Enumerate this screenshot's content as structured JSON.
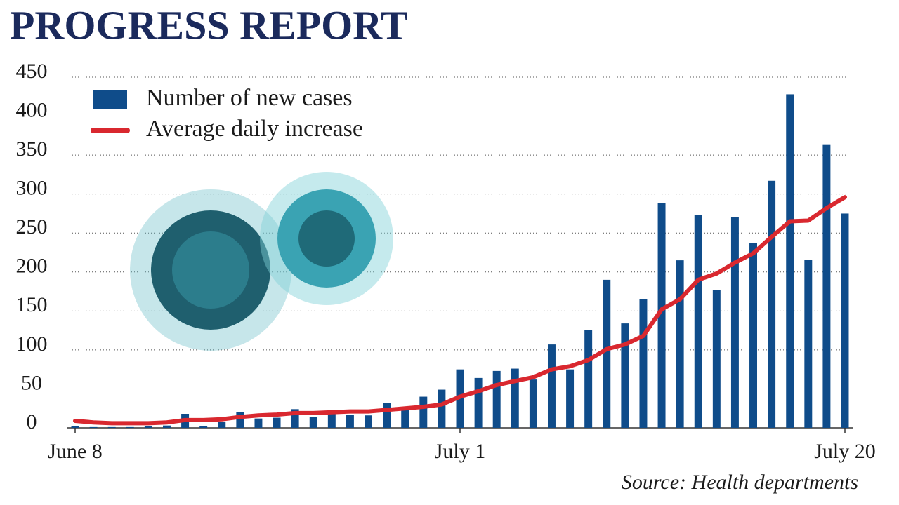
{
  "chart_data": {
    "type": "bar",
    "title": "PROGRESS REPORT",
    "source": "Source: Health departments",
    "categories": [
      "June 8",
      null,
      null,
      null,
      null,
      null,
      null,
      null,
      null,
      null,
      null,
      null,
      null,
      null,
      null,
      null,
      null,
      null,
      null,
      null,
      null,
      "July 1",
      null,
      null,
      null,
      null,
      null,
      null,
      null,
      null,
      null,
      null,
      null,
      null,
      null,
      null,
      null,
      null,
      null,
      null,
      null,
      null,
      "July 20"
    ],
    "series": [
      {
        "name": "Number of new cases",
        "color": "#0f4c8a",
        "type": "bar",
        "values": [
          2,
          1,
          1,
          1,
          2,
          3,
          18,
          2,
          8,
          20,
          12,
          13,
          24,
          14,
          20,
          17,
          16,
          32,
          24,
          40,
          49,
          75,
          64,
          73,
          76,
          62,
          107,
          75,
          126,
          190,
          134,
          165,
          288,
          215,
          273,
          177,
          270,
          237,
          317,
          428,
          216,
          363,
          275
        ]
      },
      {
        "name": "Average daily increase",
        "color": "#d9282f",
        "type": "line",
        "values": [
          9,
          7,
          6,
          6,
          6,
          7,
          10,
          10,
          11,
          14,
          16,
          17,
          19,
          19,
          20,
          21,
          21,
          23,
          25,
          27,
          30,
          40,
          47,
          55,
          60,
          65,
          75,
          79,
          87,
          101,
          107,
          118,
          152,
          165,
          190,
          198,
          212,
          224,
          245,
          265,
          266,
          282,
          296
        ]
      }
    ],
    "ylim": [
      0,
      450
    ],
    "yticks": [
      0,
      50,
      100,
      150,
      200,
      250,
      300,
      350,
      400,
      450
    ],
    "grid": true
  }
}
